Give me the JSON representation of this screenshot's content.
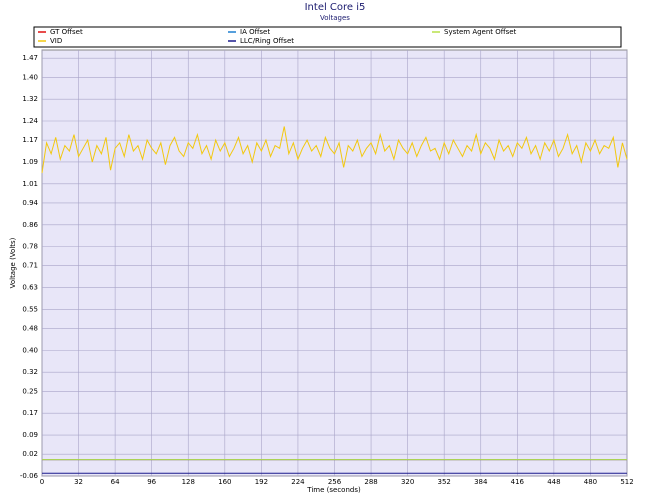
{
  "chart_data": {
    "type": "line",
    "title": "Intel Core i5",
    "subtitle": "Voltages",
    "x_label": "Time (seconds)",
    "y_label": "Voltage (Volts)",
    "xlim": [
      0,
      512
    ],
    "xticks": [
      0,
      32,
      64,
      96,
      128,
      160,
      192,
      224,
      256,
      288,
      320,
      352,
      384,
      416,
      448,
      480,
      512
    ],
    "ylim": [
      -0.06,
      1.5
    ],
    "yticks": [
      -0.06,
      0.02,
      0.09,
      0.17,
      0.25,
      0.32,
      {
        "value": 0.4,
        "label": "0.40"
      },
      0.48,
      0.55,
      0.63,
      0.71,
      0.78,
      0.86,
      0.94,
      1.01,
      1.09,
      1.17,
      1.24,
      1.32,
      {
        "value": 1.4,
        "label": "1.40"
      },
      1.47
    ],
    "grid": true,
    "x": [
      0,
      4,
      8,
      12,
      16,
      20,
      24,
      28,
      32,
      36,
      40,
      44,
      48,
      52,
      56,
      60,
      64,
      68,
      72,
      76,
      80,
      84,
      88,
      92,
      96,
      100,
      104,
      108,
      112,
      116,
      120,
      124,
      128,
      132,
      136,
      140,
      144,
      148,
      152,
      156,
      160,
      164,
      168,
      172,
      176,
      180,
      184,
      188,
      192,
      196,
      200,
      204,
      208,
      212,
      216,
      220,
      224,
      228,
      232,
      236,
      240,
      244,
      248,
      252,
      256,
      260,
      264,
      268,
      272,
      276,
      280,
      284,
      288,
      292,
      296,
      300,
      304,
      308,
      312,
      316,
      320,
      324,
      328,
      332,
      336,
      340,
      344,
      348,
      352,
      356,
      360,
      364,
      368,
      372,
      376,
      380,
      384,
      388,
      392,
      396,
      400,
      404,
      408,
      412,
      416,
      420,
      424,
      428,
      432,
      436,
      440,
      444,
      448,
      452,
      456,
      460,
      464,
      468,
      472,
      476,
      480,
      484,
      488,
      492,
      496,
      500,
      504,
      508,
      512
    ],
    "series": [
      {
        "name": "GT Offset",
        "color": "#e01010",
        "x": [
          0,
          512
        ],
        "values": [
          0,
          0
        ]
      },
      {
        "name": "IA Offset",
        "color": "#1e7fd0",
        "x": [
          0,
          512
        ],
        "values": [
          0,
          0
        ]
      },
      {
        "name": "System Agent Offset",
        "color": "#b8e04a",
        "x": [
          0,
          512
        ],
        "values": [
          0,
          0
        ]
      },
      {
        "name": "VID",
        "color": "#f2c80f",
        "values": [
          1.05,
          1.16,
          1.12,
          1.18,
          1.1,
          1.15,
          1.13,
          1.19,
          1.11,
          1.14,
          1.17,
          1.09,
          1.15,
          1.12,
          1.18,
          1.06,
          1.14,
          1.16,
          1.11,
          1.19,
          1.13,
          1.15,
          1.1,
          1.17,
          1.14,
          1.12,
          1.16,
          1.08,
          1.15,
          1.18,
          1.13,
          1.11,
          1.16,
          1.14,
          1.19,
          1.12,
          1.15,
          1.1,
          1.17,
          1.13,
          1.16,
          1.11,
          1.14,
          1.18,
          1.12,
          1.15,
          1.09,
          1.16,
          1.13,
          1.17,
          1.11,
          1.15,
          1.14,
          1.22,
          1.12,
          1.16,
          1.1,
          1.14,
          1.17,
          1.13,
          1.15,
          1.11,
          1.18,
          1.14,
          1.12,
          1.16,
          1.07,
          1.15,
          1.13,
          1.17,
          1.11,
          1.14,
          1.16,
          1.12,
          1.19,
          1.13,
          1.15,
          1.1,
          1.17,
          1.14,
          1.12,
          1.16,
          1.11,
          1.15,
          1.18,
          1.13,
          1.14,
          1.1,
          1.16,
          1.12,
          1.17,
          1.14,
          1.11,
          1.15,
          1.13,
          1.19,
          1.12,
          1.16,
          1.14,
          1.1,
          1.17,
          1.13,
          1.15,
          1.11,
          1.16,
          1.14,
          1.18,
          1.12,
          1.15,
          1.1,
          1.16,
          1.13,
          1.17,
          1.11,
          1.14,
          1.19,
          1.12,
          1.15,
          1.09,
          1.16,
          1.13,
          1.17,
          1.12,
          1.15,
          1.14,
          1.18,
          1.07,
          1.16,
          1.1
        ]
      },
      {
        "name": "LLC/Ring Offset",
        "color": "#1a1a8c",
        "x": [
          0,
          512
        ],
        "values": [
          -0.05,
          -0.05
        ]
      }
    ]
  }
}
